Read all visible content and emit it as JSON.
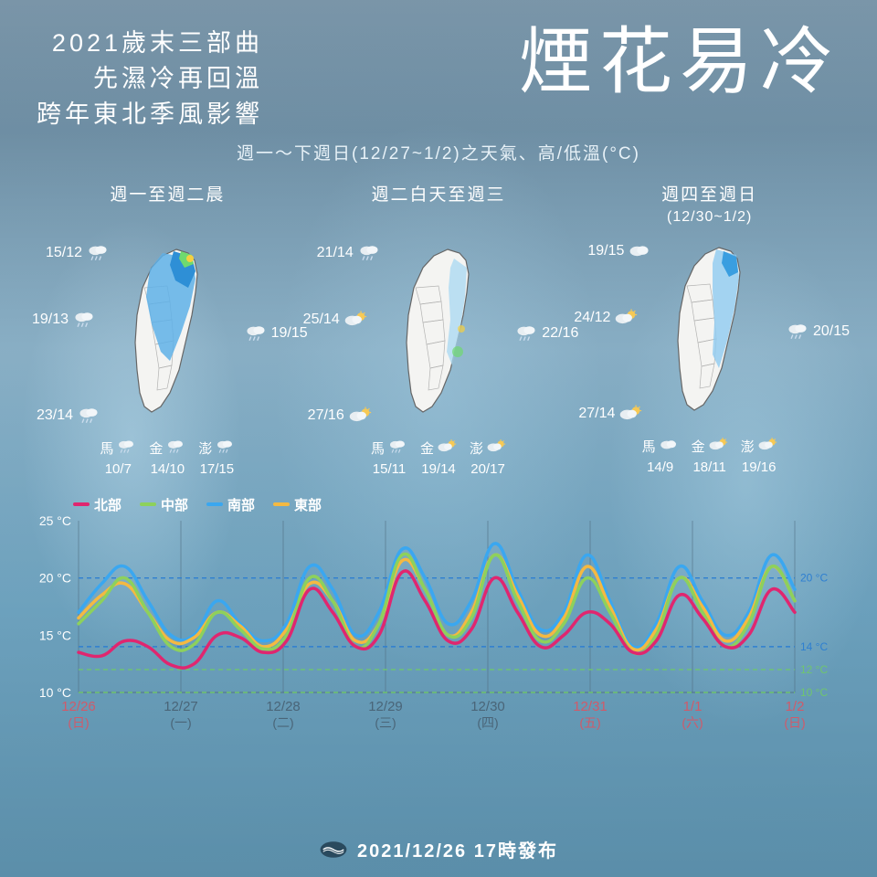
{
  "header": {
    "subtitle_lines": [
      "2021歲末三部曲",
      "先濕冷再回溫",
      "跨年東北季風影響"
    ],
    "maintitle": "煙花易冷",
    "caption": "週一～下週日(12/27~1/2)之天氣、高/低溫(°C)"
  },
  "periods": [
    {
      "title": "週一至週二晨",
      "title2": "",
      "rain_level": 3,
      "region_temps": {
        "north": "15/12",
        "central": "19/13",
        "east": "19/15",
        "south": "23/14"
      },
      "region_icons": {
        "north": "rain",
        "central": "rain",
        "east": "rain",
        "south": "rain"
      },
      "islands": [
        {
          "name": "馬",
          "temp": "10/7",
          "icon": "rain"
        },
        {
          "name": "金",
          "temp": "14/10",
          "icon": "rain"
        },
        {
          "name": "澎",
          "temp": "17/15",
          "icon": "rain"
        }
      ]
    },
    {
      "title": "週二白天至週三",
      "title2": "",
      "rain_level": 1,
      "region_temps": {
        "north": "21/14",
        "central": "25/14",
        "east": "22/16",
        "south": "27/16"
      },
      "region_icons": {
        "north": "rain",
        "central": "suncloud",
        "east": "rain",
        "south": "suncloud"
      },
      "islands": [
        {
          "name": "馬",
          "temp": "15/11",
          "icon": "rain"
        },
        {
          "name": "金",
          "temp": "19/14",
          "icon": "suncloud"
        },
        {
          "name": "澎",
          "temp": "20/17",
          "icon": "suncloud"
        }
      ]
    },
    {
      "title": "週四至週日",
      "title2": "(12/30~1/2)",
      "rain_level": 2,
      "region_temps": {
        "north": "19/15",
        "central": "24/12",
        "east": "20/15",
        "south": "27/14"
      },
      "region_icons": {
        "north": "cloud",
        "central": "suncloud",
        "east": "rain",
        "south": "suncloud"
      },
      "islands": [
        {
          "name": "馬",
          "temp": "14/9",
          "icon": "cloud"
        },
        {
          "name": "金",
          "temp": "18/11",
          "icon": "suncloud"
        },
        {
          "name": "澎",
          "temp": "19/16",
          "icon": "suncloud"
        }
      ]
    }
  ],
  "chart": {
    "type": "line",
    "x_labels": [
      "12/26\n(日)",
      "12/27\n(一)",
      "12/28\n(二)",
      "12/29\n(三)",
      "12/30\n(四)",
      "12/31\n(五)",
      "1/1\n(六)",
      "1/2\n(日)"
    ],
    "x_weekend": [
      true,
      false,
      false,
      false,
      false,
      true,
      true,
      true
    ],
    "ylim": [
      10,
      25
    ],
    "ytick_step": 5,
    "ref_lines": [
      {
        "y": 20,
        "label": "20 °C",
        "color": "#2e7fd1"
      },
      {
        "y": 14,
        "label": "14 °C",
        "color": "#2e7fd1"
      },
      {
        "y": 12,
        "label": "12 °C",
        "color": "#6fc56f"
      },
      {
        "y": 10,
        "label": "10 °C",
        "color": "#6fc56f"
      }
    ],
    "legend": [
      {
        "label": "北部",
        "color": "#e0266f"
      },
      {
        "label": "中部",
        "color": "#8dd15c"
      },
      {
        "label": "南部",
        "color": "#3aa7f0"
      },
      {
        "label": "東部",
        "color": "#f4b942"
      }
    ],
    "series": {
      "north": {
        "color": "#e0266f",
        "data": [
          13.5,
          13.2,
          14.5,
          14,
          12.4,
          12.5,
          15,
          14.8,
          13.5,
          14.5,
          19,
          17,
          14,
          15,
          20.5,
          18,
          14.5,
          15.5,
          20,
          17,
          14,
          15,
          17,
          16,
          13.5,
          14.5,
          18.5,
          16.5,
          14,
          15,
          19,
          17
        ]
      },
      "central": {
        "color": "#8dd15c",
        "data": [
          16,
          18,
          20,
          17,
          14,
          14.2,
          17,
          15.5,
          13.8,
          15,
          20,
          18,
          14,
          16,
          22,
          19,
          15,
          16.5,
          22,
          18,
          14.5,
          16,
          20,
          17,
          13.5,
          15,
          20,
          17,
          14,
          16,
          21,
          18
        ]
      },
      "south": {
        "color": "#3aa7f0",
        "data": [
          17,
          19.5,
          21,
          18,
          15,
          15,
          18,
          16,
          14.5,
          16,
          21,
          19,
          15,
          17,
          22.5,
          20,
          16,
          18,
          23,
          19,
          15.5,
          17,
          22,
          18,
          14,
          16,
          21,
          18,
          15,
          17,
          22,
          19
        ]
      },
      "east": {
        "color": "#f4b942",
        "data": [
          16.5,
          18.5,
          19.5,
          17,
          14.5,
          14.8,
          17,
          15.8,
          14,
          15.5,
          19.5,
          18,
          14.5,
          16,
          21.5,
          19,
          15,
          17,
          22,
          18.5,
          15,
          16.5,
          21,
          17.5,
          13.8,
          15.5,
          20,
          17.5,
          14.5,
          16.5,
          21,
          18
        ]
      }
    },
    "line_width": 3.5,
    "grid_color": "rgba(80,110,130,0.6)",
    "axis_font_size": 14
  },
  "footer": {
    "issued": "2021/12/26 17時發布"
  },
  "colors": {
    "text": "#ffffff",
    "weekend": "#d05a6a",
    "weekday": "#4a6578"
  }
}
